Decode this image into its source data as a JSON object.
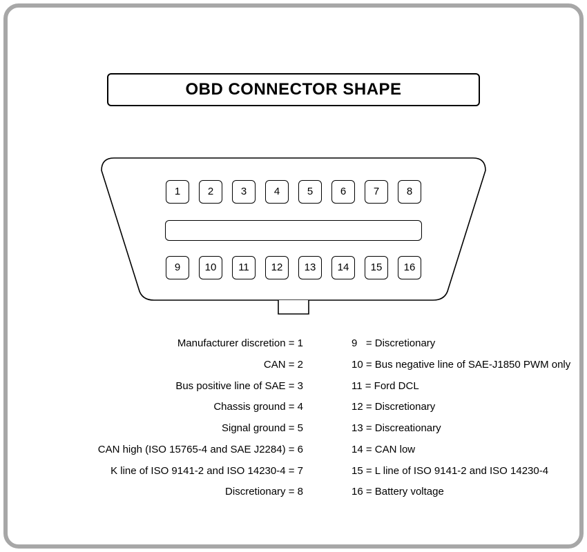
{
  "title": "OBD CONNECTOR SHAPE",
  "colors": {
    "frame_border": "#a7a7a7",
    "stroke": "#000000",
    "background": "#ffffff"
  },
  "connector": {
    "pins_top": [
      1,
      2,
      3,
      4,
      5,
      6,
      7,
      8
    ],
    "pins_bottom": [
      9,
      10,
      11,
      12,
      13,
      14,
      15,
      16
    ]
  },
  "legend_left": [
    {
      "label": "Manufacturer discretion",
      "num": "1"
    },
    {
      "label": "CAN",
      "num": "2"
    },
    {
      "label": "Bus positive line of SAE",
      "num": "3"
    },
    {
      "label": "Chassis ground",
      "num": "4"
    },
    {
      "label": "Signal ground",
      "num": "5"
    },
    {
      "label": "CAN high (ISO 15765-4 and SAE J2284)",
      "num": "6"
    },
    {
      "label": "K line of ISO 9141-2 and ISO 14230-4",
      "num": "7"
    },
    {
      "label": "Discretionary",
      "num": "8"
    }
  ],
  "legend_right": [
    {
      "num": "9",
      "label": "Discretionary",
      "pad": true
    },
    {
      "num": "10",
      "label": "Bus negative line of SAE-J1850 PWM only"
    },
    {
      "num": "11",
      "label": "Ford DCL"
    },
    {
      "num": "12",
      "label": "Discretionary"
    },
    {
      "num": "13",
      "label": "Discreationary"
    },
    {
      "num": "14",
      "label": "CAN low"
    },
    {
      "num": "15",
      "label": "L line of ISO 9141-2 and ISO 14230-4"
    },
    {
      "num": "16",
      "label": "Battery voltage"
    }
  ]
}
